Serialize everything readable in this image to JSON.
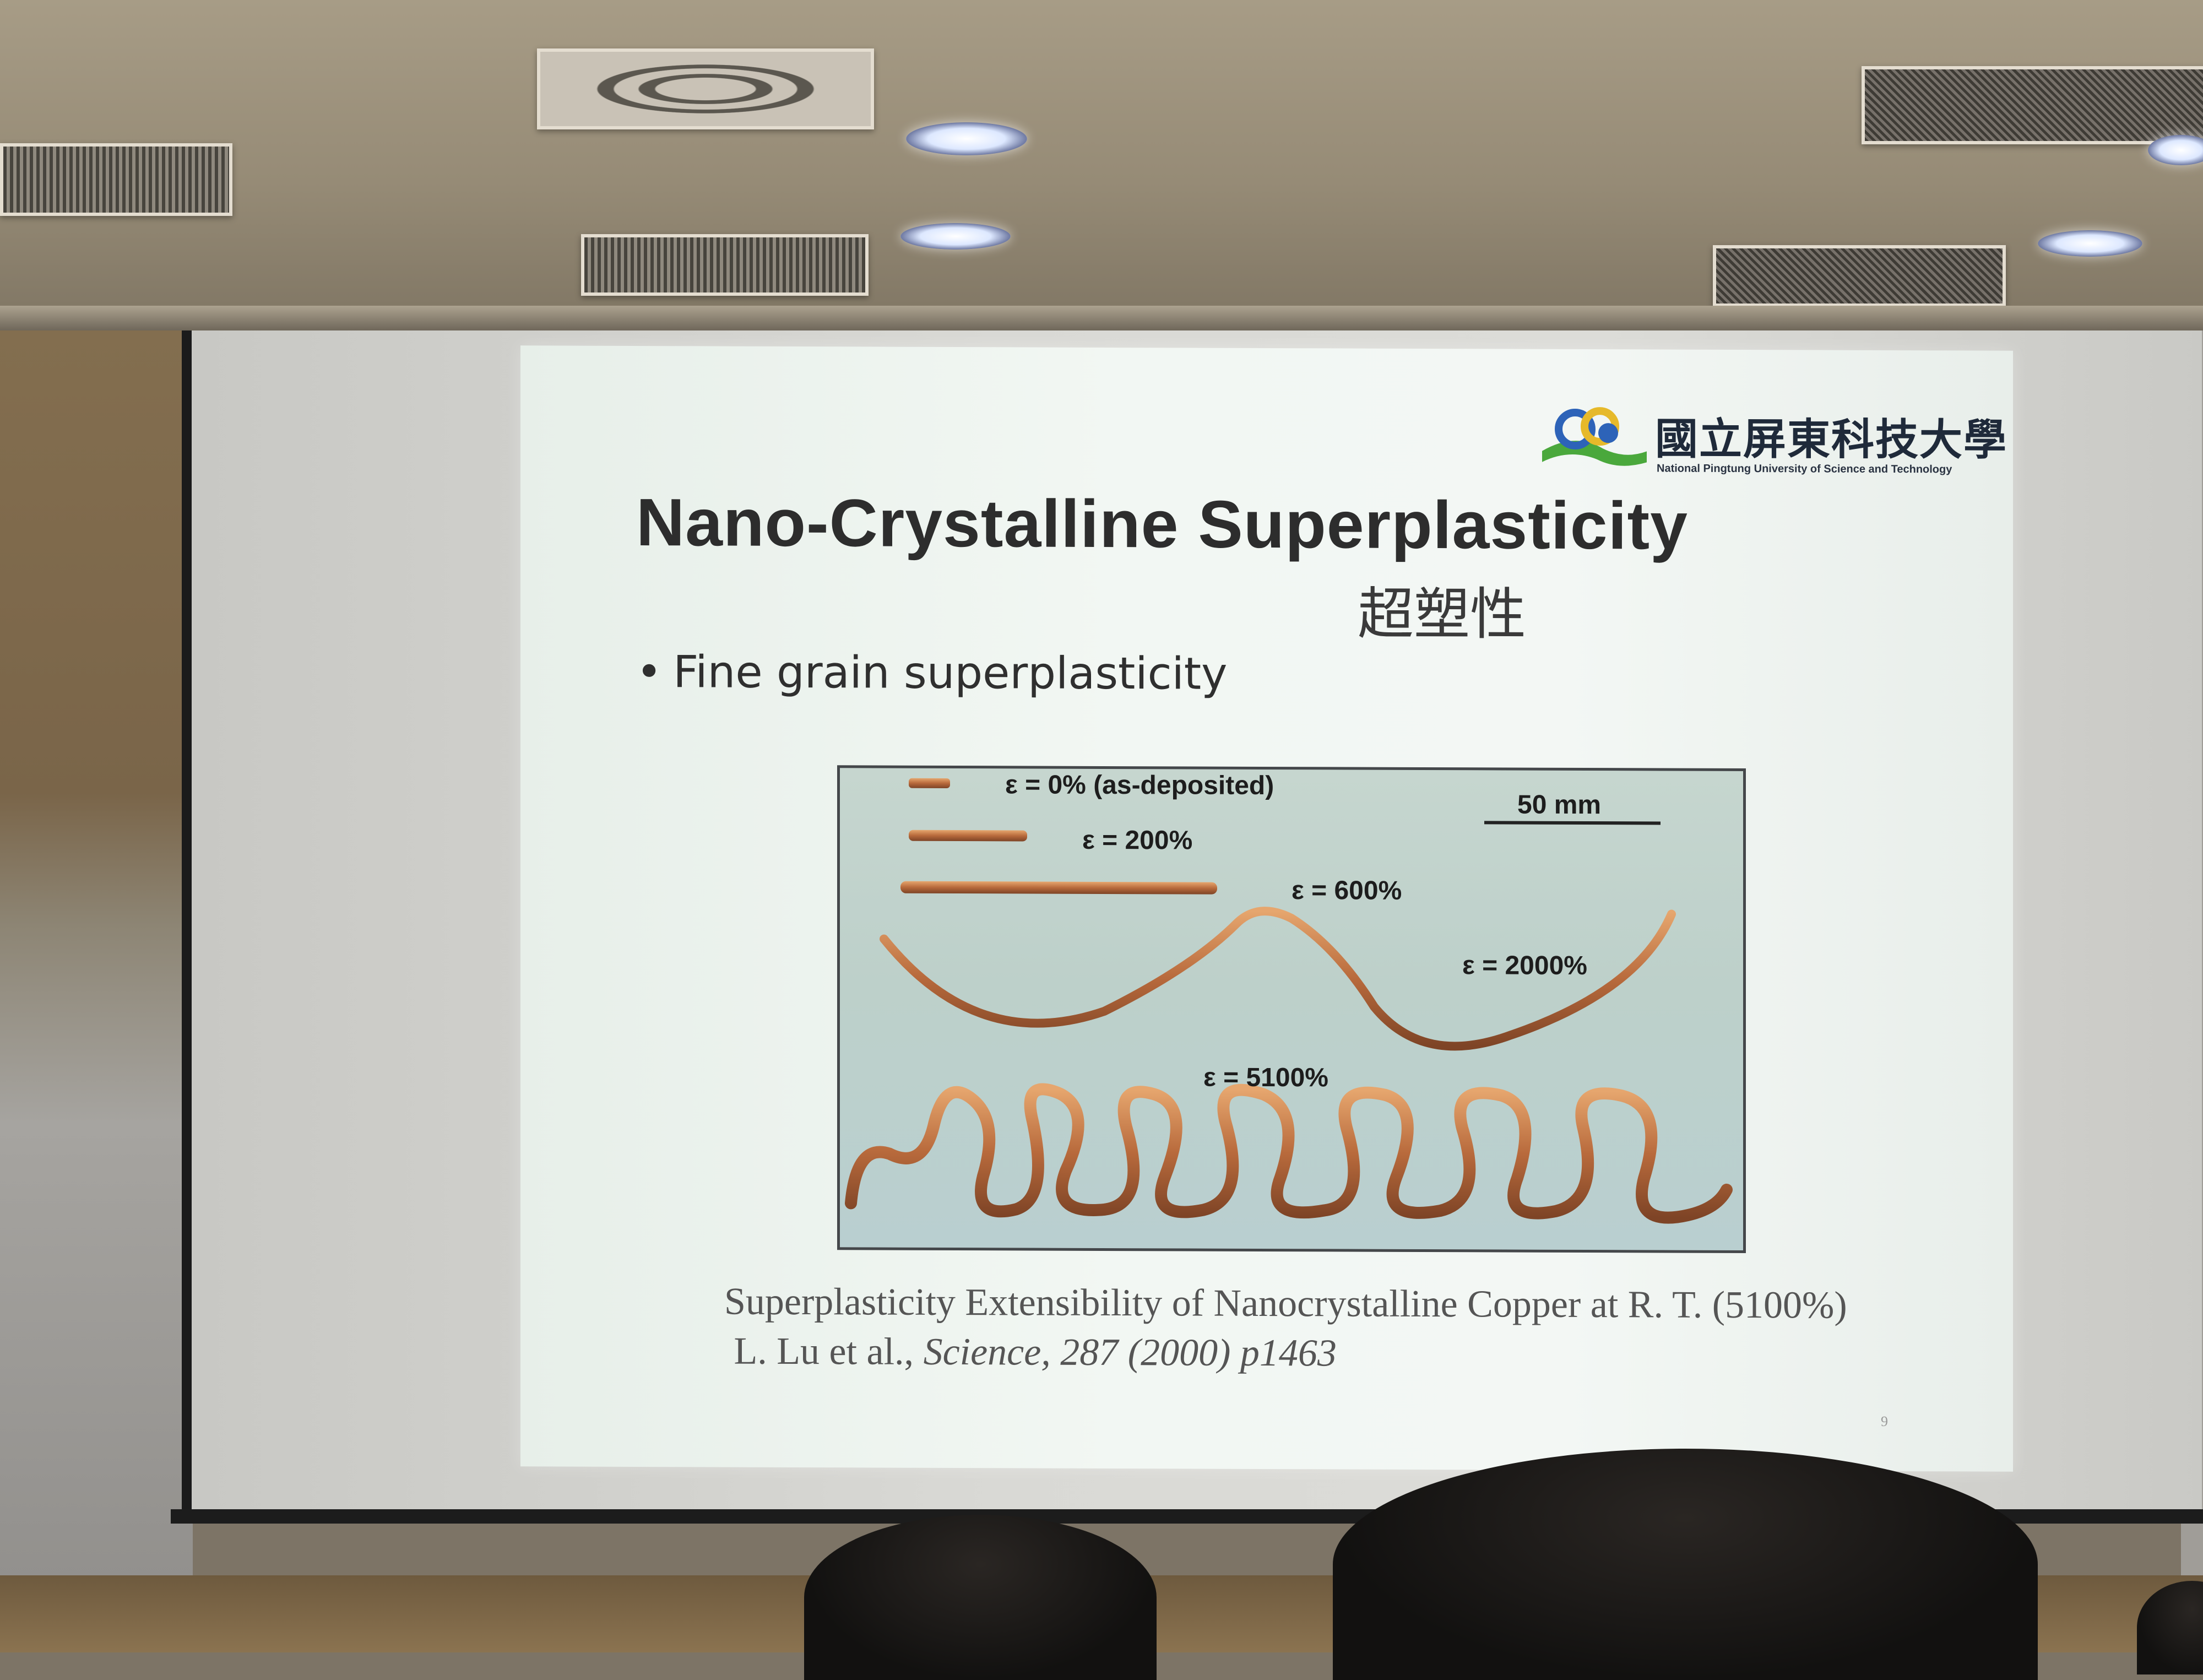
{
  "slide": {
    "logo": {
      "name_cn": "國立屏東科技大學",
      "name_en": "National Pingtung University of Science and Technology"
    },
    "title": "Nano-Crystalline Superplasticity",
    "title_cn": "超塑性",
    "bullet": "Fine grain superplasticity",
    "figure": {
      "labels": {
        "strain_0": "ε = 0% (as-deposited)",
        "strain_200": "ε = 200%",
        "strain_600": "ε = 600%",
        "strain_2000": "ε = 2000%",
        "strain_5100": "ε = 5100%",
        "scale_bar": "50 mm"
      }
    },
    "caption_line1": "Superplasticity Extensibility of Nanocrystalline Copper at R. T. (5100%)",
    "caption_line2_authors": "L. Lu et al., ",
    "caption_line2_ref": "Science, 287 (2000) p1463",
    "page_number": "9"
  },
  "colors": {
    "copper": "#b86a3c",
    "title_text": "#2d2d2d",
    "slide_bg": "#f2f7f3"
  }
}
